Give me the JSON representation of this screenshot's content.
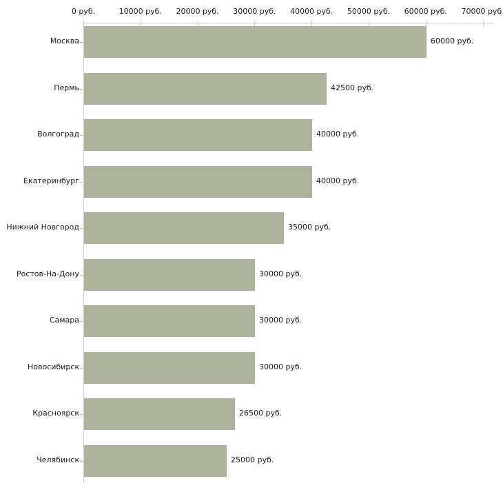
{
  "chart_data": {
    "type": "bar",
    "orientation": "horizontal",
    "title": "",
    "xlabel": "",
    "ylabel": "",
    "unit": "руб.",
    "categories": [
      "Москва",
      "Пермь",
      "Волгоград",
      "Екатеринбург",
      "Нижний Новгород",
      "Ростов-На-Дону",
      "Самара",
      "Новосибирск",
      "Красноярск",
      "Челябинск"
    ],
    "values": [
      60000,
      42500,
      40000,
      40000,
      35000,
      30000,
      30000,
      30000,
      26500,
      25000
    ],
    "value_labels": [
      "60000 руб.",
      "42500 руб.",
      "40000 руб.",
      "40000 руб.",
      "35000 руб.",
      "30000 руб.",
      "30000 руб.",
      "30000 руб.",
      "26500 руб.",
      "25000 руб."
    ],
    "x_ticks": [
      0,
      10000,
      20000,
      30000,
      40000,
      50000,
      60000,
      70000
    ],
    "x_tick_labels": [
      "0 руб.",
      "10000 руб.",
      "20000 руб.",
      "30000 руб.",
      "40000 руб.",
      "50000 руб.",
      "60000 руб.",
      "70000 руб."
    ],
    "xlim": [
      0,
      71800
    ],
    "grid": false,
    "legend": false,
    "colors": {
      "bar": "#acb29b",
      "tick": "#c9caa0",
      "axis_line": "#cccccc",
      "text": "#1b1b1b",
      "background": "#ffffff"
    }
  }
}
